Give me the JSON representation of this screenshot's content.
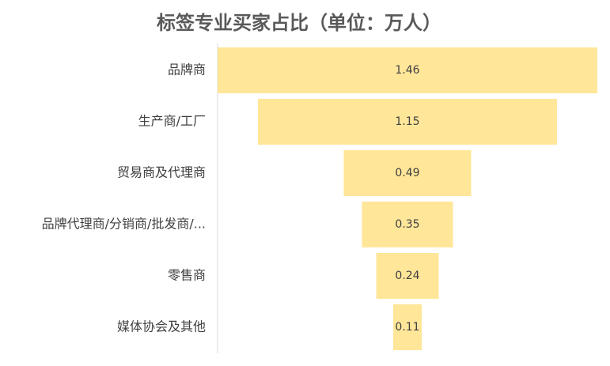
{
  "chart_data": {
    "type": "funnel",
    "title": "标签专业买家占比（单位：万人）",
    "categories": [
      "品牌商",
      "生产商/工厂",
      "贸易商及代理商",
      "品牌代理商/分销商/批发商/...",
      "零售商",
      "媒体协会及其他"
    ],
    "values": [
      1.46,
      1.15,
      0.49,
      0.35,
      0.24,
      0.11
    ],
    "color": "#ffe699"
  }
}
